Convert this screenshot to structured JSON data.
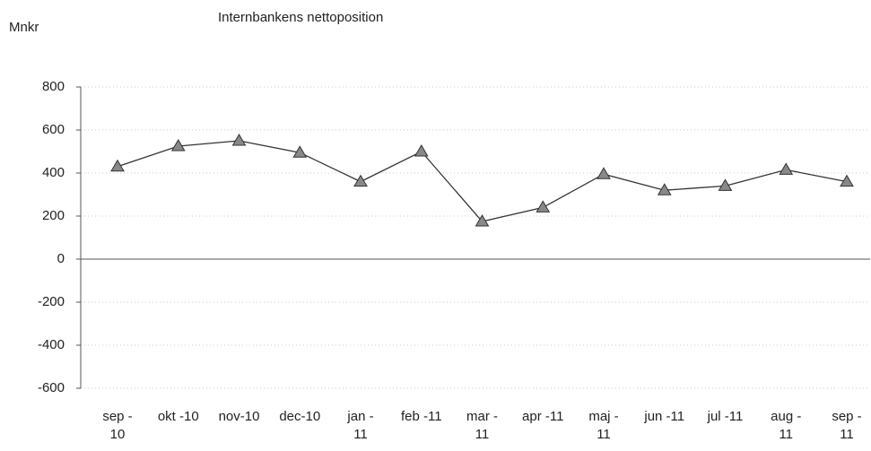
{
  "chart_data": {
    "type": "line",
    "title": "Internbankens  nettoposition",
    "ylabel": "Mnkr",
    "categories": [
      "sep -\n10",
      "okt -10",
      "nov-10",
      "dec-10",
      "jan -\n11",
      "feb -11",
      "mar -\n11",
      "apr -11",
      "maj -\n11",
      "jun -11",
      "jul  -11",
      "aug -\n11",
      "sep -\n11"
    ],
    "series": [
      {
        "name": "Internbankens nettoposition",
        "color": "#333333",
        "values": [
          430,
          525,
          550,
          495,
          360,
          500,
          175,
          240,
          395,
          320,
          340,
          415,
          360
        ]
      }
    ],
    "ylim": [
      -600,
      800
    ],
    "yticks": [
      -600,
      -400,
      -200,
      0,
      200,
      400,
      600,
      800
    ],
    "grid": true
  }
}
